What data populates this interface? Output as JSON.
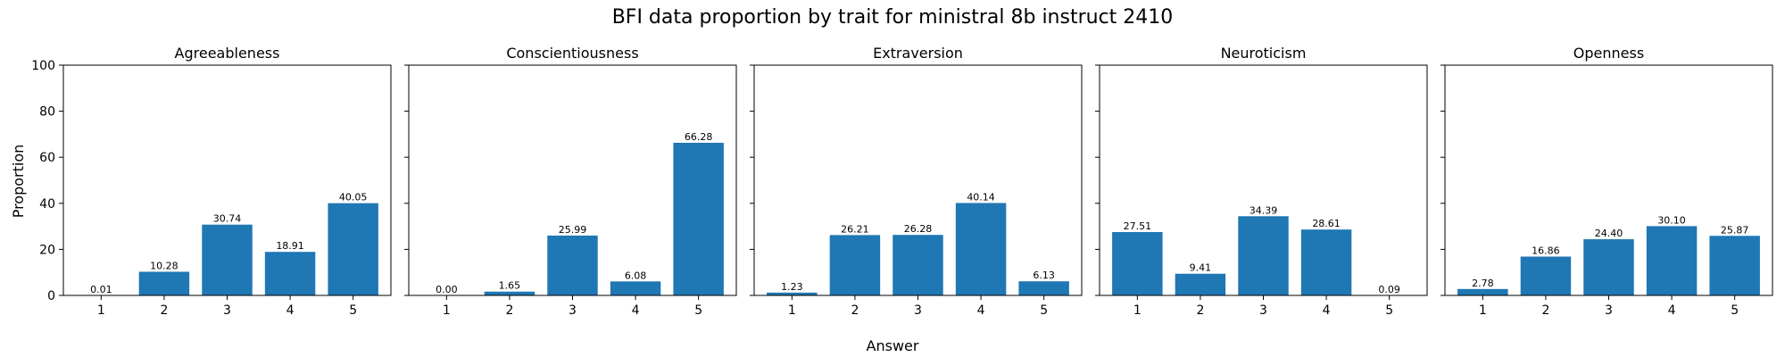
{
  "figure": {
    "title": "BFI data proportion by trait for ministral 8b instruct 2410",
    "xlabel": "Answer",
    "ylabel": "Proportion"
  },
  "chart_data": {
    "type": "bar",
    "title": "BFI data proportion by trait for ministral 8b instruct 2410",
    "xlabel": "Answer",
    "ylabel": "Proportion",
    "ylim": [
      0,
      100
    ],
    "yticks": [
      0,
      20,
      40,
      60,
      80,
      100
    ],
    "categories": [
      "1",
      "2",
      "3",
      "4",
      "5"
    ],
    "bar_color": "#1f77b4",
    "grid": false,
    "series": [
      {
        "name": "Agreeableness",
        "values": [
          0.01,
          10.28,
          30.74,
          18.91,
          40.05
        ],
        "labels": [
          "0.01",
          "10.28",
          "30.74",
          "18.91",
          "40.05"
        ]
      },
      {
        "name": "Conscientiousness",
        "values": [
          0.0,
          1.65,
          25.99,
          6.08,
          66.28
        ],
        "labels": [
          "0.00",
          "1.65",
          "25.99",
          "6.08",
          "66.28"
        ]
      },
      {
        "name": "Extraversion",
        "values": [
          1.23,
          26.21,
          26.28,
          40.14,
          6.13
        ],
        "labels": [
          "1.23",
          "26.21",
          "26.28",
          "40.14",
          "6.13"
        ]
      },
      {
        "name": "Neuroticism",
        "values": [
          27.51,
          9.41,
          34.39,
          28.61,
          0.09
        ],
        "labels": [
          "27.51",
          "9.41",
          "34.39",
          "28.61",
          "0.09"
        ]
      },
      {
        "name": "Openness",
        "values": [
          2.78,
          16.86,
          24.4,
          30.1,
          25.87
        ],
        "labels": [
          "2.78",
          "16.86",
          "24.40",
          "30.10",
          "25.87"
        ]
      }
    ]
  }
}
